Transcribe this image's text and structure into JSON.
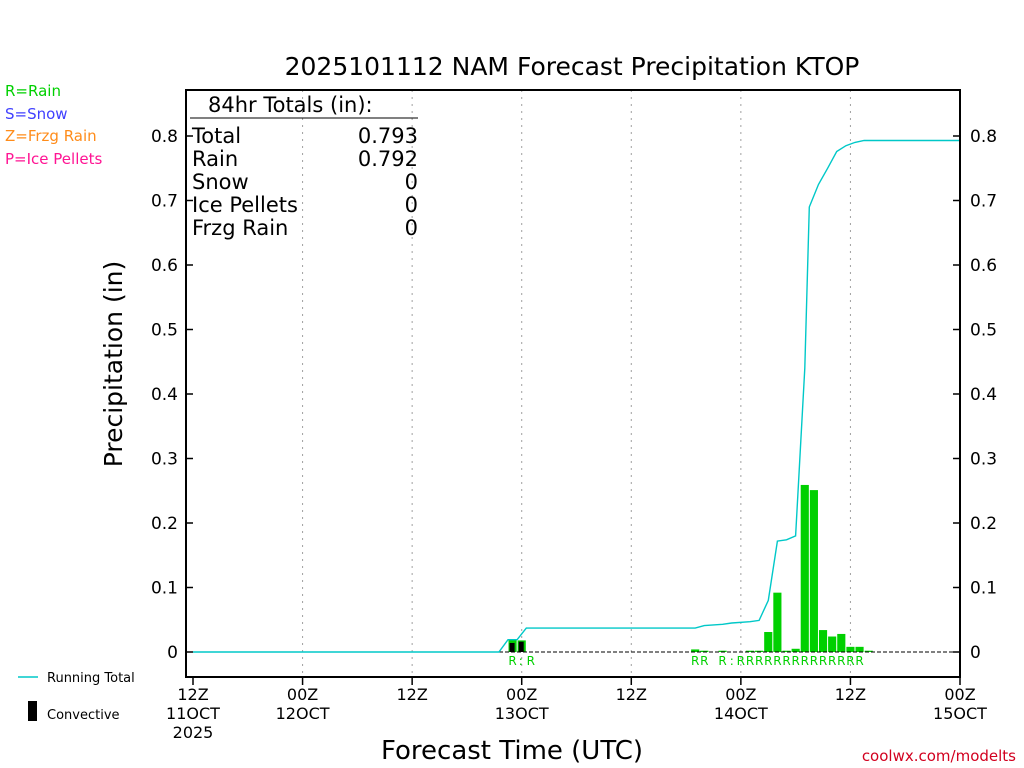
{
  "colors": {
    "rain": "#00d000",
    "snow": "#4040ff",
    "frzg": "#ff8c1a",
    "ice": "#ff1493",
    "running_total": "#00c8c8",
    "convective": "#000000",
    "axis": "#000000",
    "grid": "#a0a0a0",
    "credit": "#d2001f"
  },
  "legend_left": {
    "rain": "R=Rain",
    "snow": "S=Snow",
    "frzg": "Z=Frzg Rain",
    "ice": "P=Ice Pellets"
  },
  "legend_bottom": {
    "running_total": "Running Total",
    "convective": "Convective"
  },
  "totals_box": {
    "heading": "84hr Totals (in):",
    "rows": [
      {
        "label": "Total",
        "value": "0.793"
      },
      {
        "label": "Rain",
        "value": "0.792"
      },
      {
        "label": "Snow",
        "value": "0"
      },
      {
        "label": "Ice Pellets",
        "value": "0"
      },
      {
        "label": "Frzg Rain",
        "value": "0"
      }
    ]
  },
  "credit": "coolwx.com/modelts",
  "chart_data": {
    "type": "bar",
    "title": "2025101112 NAM Forecast Precipitation KTOP",
    "xlabel": "Forecast Time (UTC)",
    "ylabel": "Precipitation (in)",
    "x_unit": "forecast hour",
    "xlim": [
      0,
      84
    ],
    "ylim": [
      -0.04,
      0.875
    ],
    "yticks": [
      0,
      0.1,
      0.2,
      0.3,
      0.4,
      0.5,
      0.6,
      0.7,
      0.8
    ],
    "ytick_labels": [
      "0",
      "0.1",
      "0.2",
      "0.3",
      "0.4",
      "0.5",
      "0.6",
      "0.7",
      "0.8"
    ],
    "xticks": [
      {
        "hour": 0,
        "line1": "12Z",
        "line2": "11OCT",
        "line3": "2025"
      },
      {
        "hour": 12,
        "line1": "00Z",
        "line2": "12OCT",
        "line3": ""
      },
      {
        "hour": 24,
        "line1": "12Z",
        "line2": "",
        "line3": ""
      },
      {
        "hour": 36,
        "line1": "00Z",
        "line2": "13OCT",
        "line3": ""
      },
      {
        "hour": 48,
        "line1": "12Z",
        "line2": "",
        "line3": ""
      },
      {
        "hour": 60,
        "line1": "00Z",
        "line2": "14OCT",
        "line3": ""
      },
      {
        "hour": 72,
        "line1": "12Z",
        "line2": "",
        "line3": ""
      },
      {
        "hour": 84,
        "line1": "00Z",
        "line2": "15OCT",
        "line3": ""
      }
    ],
    "series": [
      {
        "name": "Rain (hourly precip)",
        "bars": [
          {
            "hour": 35,
            "value": 0.019
          },
          {
            "hour": 36,
            "value": 0.018
          },
          {
            "hour": 55,
            "value": 0.004
          },
          {
            "hour": 56,
            "value": 0.002
          },
          {
            "hour": 58,
            "value": 0.002
          },
          {
            "hour": 61,
            "value": 0.002
          },
          {
            "hour": 62,
            "value": 0.002
          },
          {
            "hour": 63,
            "value": 0.031
          },
          {
            "hour": 64,
            "value": 0.092
          },
          {
            "hour": 65,
            "value": 0.002
          },
          {
            "hour": 66,
            "value": 0.005
          },
          {
            "hour": 67,
            "value": 0.259
          },
          {
            "hour": 68,
            "value": 0.251
          },
          {
            "hour": 69,
            "value": 0.034
          },
          {
            "hour": 70,
            "value": 0.024
          },
          {
            "hour": 71,
            "value": 0.028
          },
          {
            "hour": 72,
            "value": 0.008
          },
          {
            "hour": 73,
            "value": 0.008
          },
          {
            "hour": 74,
            "value": 0.002
          }
        ]
      },
      {
        "name": "Convective",
        "bars": [
          {
            "hour": 35,
            "value": 0.014
          },
          {
            "hour": 36,
            "value": 0.016
          }
        ]
      },
      {
        "name": "Running Total",
        "points": [
          [
            0,
            0
          ],
          [
            33.5,
            0
          ],
          [
            34.5,
            0.019
          ],
          [
            35.5,
            0.019
          ],
          [
            36.5,
            0.037
          ],
          [
            55,
            0.037
          ],
          [
            56,
            0.041
          ],
          [
            58,
            0.043
          ],
          [
            59,
            0.045
          ],
          [
            61,
            0.047
          ],
          [
            62,
            0.049
          ],
          [
            63,
            0.08
          ],
          [
            64,
            0.172
          ],
          [
            65,
            0.174
          ],
          [
            66,
            0.18
          ],
          [
            67,
            0.44
          ],
          [
            67.5,
            0.69
          ],
          [
            68.5,
            0.725
          ],
          [
            69.5,
            0.75
          ],
          [
            70.5,
            0.776
          ],
          [
            71.5,
            0.785
          ],
          [
            72.5,
            0.79
          ],
          [
            73.5,
            0.793
          ],
          [
            84,
            0.793
          ]
        ]
      }
    ],
    "type_markers": [
      {
        "hour": 35,
        "text": "R"
      },
      {
        "hour": 35.9,
        "text": ":"
      },
      {
        "hour": 37,
        "text": "R"
      },
      {
        "hour": 55,
        "text": "R"
      },
      {
        "hour": 56,
        "text": "R"
      },
      {
        "hour": 58,
        "text": "R"
      },
      {
        "hour": 59,
        "text": ":"
      },
      {
        "hour": 60,
        "text": "R"
      },
      {
        "hour": 61,
        "text": "R"
      },
      {
        "hour": 62,
        "text": "R"
      },
      {
        "hour": 63,
        "text": "R"
      },
      {
        "hour": 64,
        "text": "R"
      },
      {
        "hour": 65,
        "text": "R"
      },
      {
        "hour": 66,
        "text": "R"
      },
      {
        "hour": 67,
        "text": "R"
      },
      {
        "hour": 68,
        "text": "R"
      },
      {
        "hour": 69,
        "text": "R"
      },
      {
        "hour": 70,
        "text": "R"
      },
      {
        "hour": 71,
        "text": "R"
      },
      {
        "hour": 72,
        "text": "R"
      },
      {
        "hour": 73,
        "text": "R"
      }
    ]
  }
}
